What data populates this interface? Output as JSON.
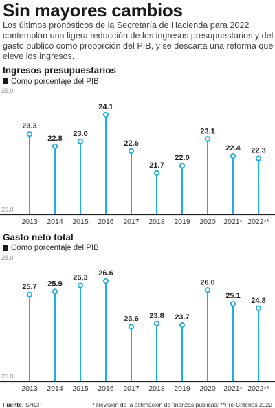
{
  "header": {
    "title": "Sin mayores cambios",
    "intro": "Los últimos pronósticos de la Secretaría de Hacienda para 2022 contemplan una ligera reducción de los ingresos presupuestarios y del gasto público como proporción del PIB, y se descarta una reforma que eleve los ingresos."
  },
  "colors": {
    "stem": "#1ab0e0",
    "marker_fill": "#ffffff",
    "baseline": "#222222",
    "axis_text": "#999999"
  },
  "chart_data": [
    {
      "type": "lollipop",
      "title": "Ingresos presupuestarios",
      "legend": "Como porcentaje del PIB",
      "categories": [
        "2013",
        "2014",
        "2015",
        "2016",
        "2017",
        "2018",
        "2019",
        "2020",
        "2021*",
        "2022**"
      ],
      "values": [
        23.3,
        22.8,
        23.0,
        24.1,
        22.6,
        21.7,
        22.0,
        23.1,
        22.4,
        22.3
      ],
      "labels": [
        "23.3",
        "22.8",
        "23.0",
        "24.1",
        "22.6",
        "21.7",
        "22.0",
        "23.1",
        "22.4",
        "22.3"
      ],
      "ylim": [
        20.0,
        25.0
      ],
      "ytick_labels": [
        "20.0",
        "25.0"
      ],
      "grid": false
    },
    {
      "type": "lollipop",
      "title": "Gasto neto total",
      "legend": "Como porcentaje del PIB",
      "categories": [
        "2013",
        "2014",
        "2015",
        "2016",
        "2017",
        "2018",
        "2019",
        "2020",
        "2021*",
        "2022**"
      ],
      "values": [
        25.7,
        25.9,
        26.3,
        26.6,
        23.6,
        23.8,
        23.7,
        26.0,
        25.1,
        24.8
      ],
      "labels": [
        "25.7",
        "25.9",
        "26.3",
        "26.6",
        "23.6",
        "23.8",
        "23.7",
        "26.0",
        "25.1",
        "24.8"
      ],
      "ylim": [
        20.0,
        28.0
      ],
      "ytick_labels": [
        "20.0",
        "28.0"
      ],
      "grid": false
    }
  ],
  "footer": {
    "source_label": "Fuente:",
    "source": "SHCP",
    "notes": "* Revisión de la estimación de finanzas públicas; **Pre-Criterios 2022"
  }
}
